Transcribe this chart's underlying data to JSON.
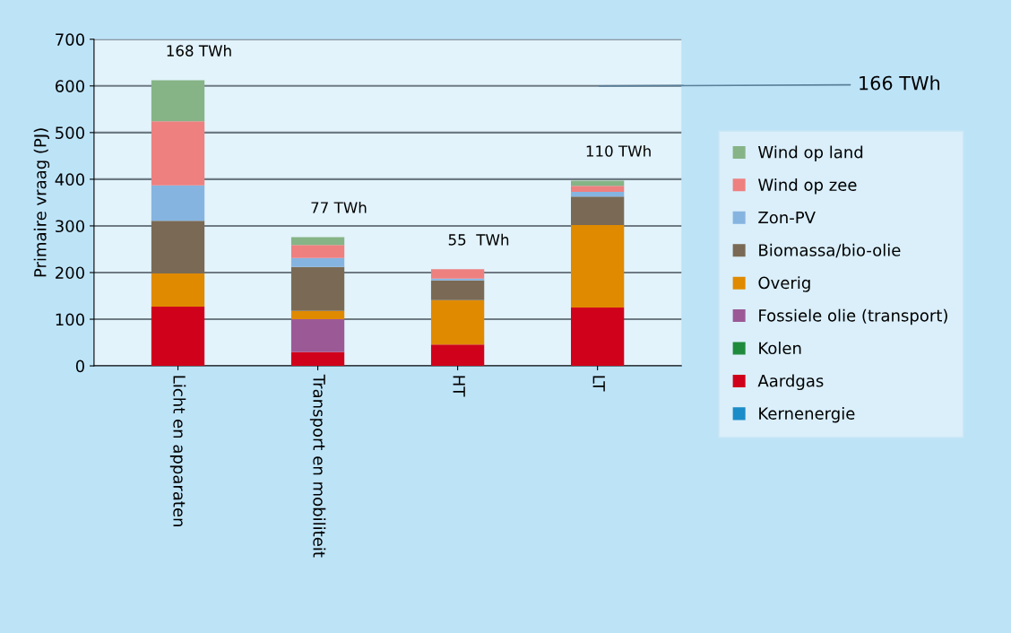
{
  "chart_data": {
    "type": "bar",
    "stacked": true,
    "ylabel": "Primaire vraag (PJ)",
    "categories": [
      "Licht en apparaten",
      "Transport en mobiliteit",
      "HT",
      "LT"
    ],
    "series": [
      {
        "name": "Kernenergie",
        "color": "#1a8cc8",
        "values": [
          0,
          0,
          0,
          0
        ]
      },
      {
        "name": "Aardgas",
        "color": "#d0021b",
        "values": [
          127,
          30,
          46,
          125
        ]
      },
      {
        "name": "Kolen",
        "color": "#1e8a3c",
        "values": [
          0,
          0,
          0,
          0
        ]
      },
      {
        "name": "Fossiele olie (transport)",
        "color": "#9b5a96",
        "values": [
          0,
          70,
          0,
          0
        ]
      },
      {
        "name": "Overig",
        "color": "#e08a00",
        "values": [
          71,
          18,
          95,
          177
        ]
      },
      {
        "name": "Biomassa/bio-olie",
        "color": "#7a6a55",
        "values": [
          113,
          94,
          42,
          61
        ]
      },
      {
        "name": "Zon-PV",
        "color": "#86b4e0",
        "values": [
          76,
          19,
          4,
          10
        ]
      },
      {
        "name": "Wind op zee",
        "color": "#ee8080",
        "values": [
          137,
          28,
          20,
          13
        ]
      },
      {
        "name": "Wind op land",
        "color": "#86b486",
        "values": [
          88,
          17,
          0,
          11
        ]
      }
    ],
    "ylim": [
      0,
      700
    ],
    "yticks": [
      0,
      100,
      200,
      300,
      400,
      500,
      600,
      700
    ],
    "grid": "y",
    "legend": "right",
    "annotations": [
      "168 TWh",
      "77 TWh",
      "55  TWh",
      "110 TWh",
      "166 TWh"
    ]
  }
}
